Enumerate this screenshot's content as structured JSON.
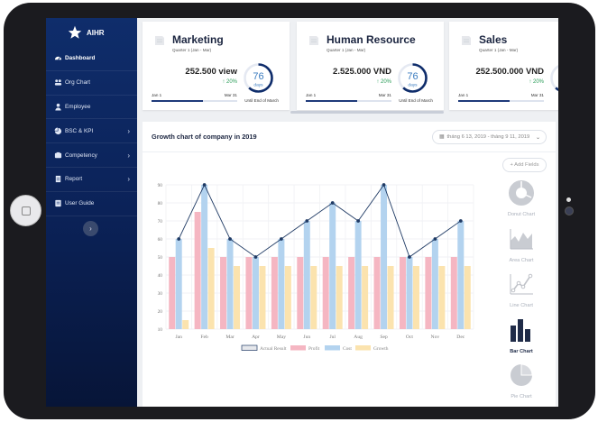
{
  "app": {
    "brand": "AIHR"
  },
  "sidebar": {
    "items": [
      {
        "label": "Dashboard",
        "icon": "dashboard-icon",
        "chevron": false,
        "active": true
      },
      {
        "label": "Org Chart",
        "icon": "org-chart-icon",
        "chevron": false
      },
      {
        "label": "Employee",
        "icon": "employee-icon",
        "chevron": false
      },
      {
        "label": "BSC & KPI",
        "icon": "pie-icon",
        "chevron": true
      },
      {
        "label": "Competency",
        "icon": "competency-icon",
        "chevron": true
      },
      {
        "label": "Report",
        "icon": "report-icon",
        "chevron": true
      },
      {
        "label": "User Guide",
        "icon": "guide-icon",
        "chevron": false
      }
    ],
    "collapse_glyph": "›"
  },
  "cards": [
    {
      "title": "Marketing",
      "subtitle": "Quarter 1 (Jan - Mar)",
      "amount": "252.500 view",
      "change": "↑ 20%",
      "days": "76",
      "days_label": "days",
      "start": "Jan 1",
      "end": "Mar 31",
      "until": "Until End of March",
      "progress": 0.6,
      "ring_progress": 0.62
    },
    {
      "title": "Human Resource",
      "subtitle": "Quarter 1 (Jan - Mar)",
      "amount": "2.525.000 VND",
      "change": "↑ 20%",
      "days": "76",
      "days_label": "days",
      "start": "Jan 1",
      "end": "Mar 31",
      "until": "Until End of March",
      "progress": 0.6,
      "ring_progress": 0.62
    },
    {
      "title": "Sales",
      "subtitle": "Quarter 1 (Jan - Mar)",
      "amount": "252.500.000 VND",
      "change": "↑ 20%",
      "days": "76",
      "days_label": "days",
      "start": "Jan 1",
      "end": "Mar 31",
      "until": "",
      "progress": 0.6,
      "ring_progress": 0.62
    }
  ],
  "chart_panel": {
    "title": "Growth chart of company in 2019",
    "date_range": "tháng 6 13, 2019 - tháng 9 11, 2019",
    "add_fields": "+ Add Fields",
    "chart_types": [
      {
        "label": "Donut Chart",
        "icon": "donut-chart-icon",
        "active": false
      },
      {
        "label": "Area Chart",
        "icon": "area-chart-icon",
        "active": false
      },
      {
        "label": "Line Chart",
        "icon": "line-chart-icon",
        "active": false
      },
      {
        "label": "Bar Chart",
        "icon": "bar-chart-icon",
        "active": true
      },
      {
        "label": "Pie Chart",
        "icon": "pie-chart-icon",
        "active": false
      }
    ]
  },
  "colors": {
    "profit": "#f5b6c2",
    "cost": "#b3d3ef",
    "growth": "#fbe3ae",
    "actual": "#1f3a64",
    "navy": "#0f2d6b"
  },
  "chart_data": {
    "type": "bar",
    "categories": [
      "Jan",
      "Feb",
      "Mar",
      "Apr",
      "May",
      "Jun",
      "Jul",
      "Aug",
      "Sep",
      "Oct",
      "Nov",
      "Dec"
    ],
    "ylim": [
      10,
      90
    ],
    "yticks": [
      "10",
      "20",
      "30",
      "40",
      "50",
      "60",
      "70",
      "80",
      "90"
    ],
    "series": [
      {
        "name": "Profit",
        "values": [
          50,
          75,
          50,
          50,
          50,
          50,
          50,
          50,
          50,
          50,
          50,
          50
        ]
      },
      {
        "name": "Cost",
        "values": [
          60,
          90,
          60,
          50,
          60,
          70,
          80,
          70,
          90,
          50,
          60,
          70
        ]
      },
      {
        "name": "Growth",
        "values": [
          15,
          55,
          45,
          45,
          45,
          45,
          45,
          45,
          45,
          45,
          45,
          45
        ]
      }
    ],
    "line": {
      "name": "Actual Result",
      "values": [
        60,
        90,
        60,
        50,
        60,
        70,
        80,
        70,
        90,
        50,
        60,
        70
      ]
    },
    "legend": [
      "Actual Result",
      "Profit",
      "Cost",
      "Growth"
    ],
    "legend_position": "bottom",
    "grid": true
  }
}
